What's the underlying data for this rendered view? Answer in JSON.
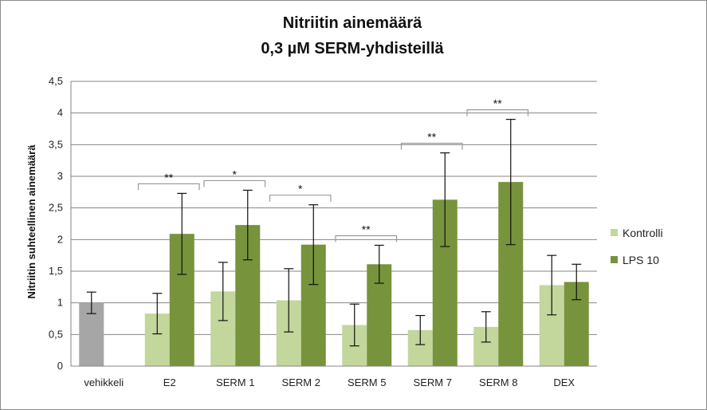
{
  "chart_data": {
    "type": "bar",
    "title": "Nitriitin ainemäärä",
    "subtitle": "0,3 µM SERM-yhdisteillä",
    "xlabel": "",
    "ylabel": "Nitriitin suhteellinen ainemäärä",
    "ylim": [
      0,
      4.5
    ],
    "yticks": [
      "0",
      "0,5",
      "1",
      "1,5",
      "2",
      "2,5",
      "3",
      "3,5",
      "4",
      "4,5"
    ],
    "grid": true,
    "legend_position": "right",
    "categories": [
      "vehikkeli",
      "E2",
      "SERM 1",
      "SERM 2",
      "SERM 5",
      "SERM 7",
      "SERM 8",
      "DEX"
    ],
    "vehicle": {
      "value": 1.0,
      "error": 0.17,
      "color": "#a6a6a6"
    },
    "series": [
      {
        "name": "Kontrolli",
        "color": "#c3d69b",
        "values": [
          null,
          0.83,
          1.18,
          1.04,
          0.65,
          0.57,
          0.62,
          1.28
        ],
        "errors": [
          null,
          0.32,
          0.46,
          0.5,
          0.33,
          0.23,
          0.24,
          0.47
        ]
      },
      {
        "name": "LPS 10",
        "color": "#77933c",
        "values": [
          null,
          2.09,
          2.23,
          1.92,
          1.61,
          2.63,
          2.91,
          1.33
        ],
        "errors": [
          null,
          0.64,
          0.55,
          0.63,
          0.3,
          0.74,
          0.99,
          0.28
        ]
      }
    ],
    "significance": [
      {
        "category": "E2",
        "label": "**"
      },
      {
        "category": "SERM 1",
        "label": "*"
      },
      {
        "category": "SERM 2",
        "label": "*"
      },
      {
        "category": "SERM 5",
        "label": "**"
      },
      {
        "category": "SERM 7",
        "label": "**"
      },
      {
        "category": "SERM 8",
        "label": "**"
      }
    ]
  }
}
